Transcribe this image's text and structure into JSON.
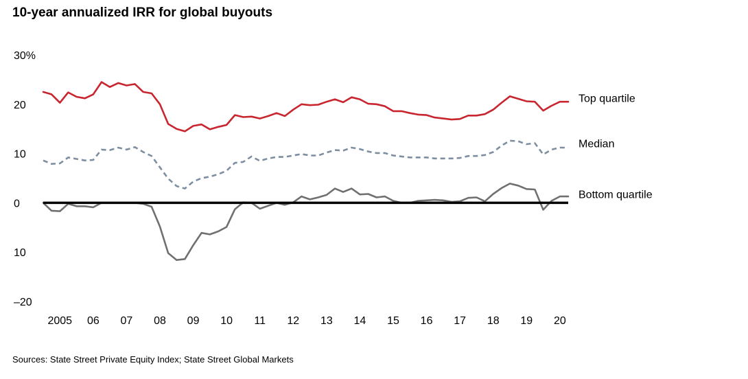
{
  "chart_data": {
    "type": "line",
    "title": "10-year annualized IRR for global buyouts",
    "source": "Sources: State Street Private Equity Index; State Street Global Markets",
    "xlabel": "",
    "ylabel": "",
    "xlim": [
      2005,
      2020.75
    ],
    "ylim": [
      -20,
      30
    ],
    "y_ticks": [
      {
        "value": 30,
        "label": "30%"
      },
      {
        "value": 20,
        "label": "20"
      },
      {
        "value": 10,
        "label": "10"
      },
      {
        "value": 0,
        "label": "0"
      },
      {
        "value": -10,
        "label": "10"
      },
      {
        "value": -20,
        "label": "–20"
      }
    ],
    "x_ticks": [
      {
        "value": 2005.5,
        "label": "2005"
      },
      {
        "value": 2006.5,
        "label": "06"
      },
      {
        "value": 2007.5,
        "label": "07"
      },
      {
        "value": 2008.5,
        "label": "08"
      },
      {
        "value": 2009.5,
        "label": "09"
      },
      {
        "value": 2010.5,
        "label": "10"
      },
      {
        "value": 2011.5,
        "label": "11"
      },
      {
        "value": 2012.5,
        "label": "12"
      },
      {
        "value": 2013.5,
        "label": "13"
      },
      {
        "value": 2014.5,
        "label": "14"
      },
      {
        "value": 2015.5,
        "label": "15"
      },
      {
        "value": 2016.5,
        "label": "16"
      },
      {
        "value": 2017.5,
        "label": "17"
      },
      {
        "value": 2018.5,
        "label": "18"
      },
      {
        "value": 2019.5,
        "label": "19"
      },
      {
        "value": 2020.5,
        "label": "20"
      }
    ],
    "x": [
      2005.0,
      2005.25,
      2005.5,
      2005.75,
      2006.0,
      2006.25,
      2006.5,
      2006.75,
      2007.0,
      2007.25,
      2007.5,
      2007.75,
      2008.0,
      2008.25,
      2008.5,
      2008.75,
      2009.0,
      2009.25,
      2009.5,
      2009.75,
      2010.0,
      2010.25,
      2010.5,
      2010.75,
      2011.0,
      2011.25,
      2011.5,
      2011.75,
      2012.0,
      2012.25,
      2012.5,
      2012.75,
      2013.0,
      2013.25,
      2013.5,
      2013.75,
      2014.0,
      2014.25,
      2014.5,
      2014.75,
      2015.0,
      2015.25,
      2015.5,
      2015.75,
      2016.0,
      2016.25,
      2016.5,
      2016.75,
      2017.0,
      2017.25,
      2017.5,
      2017.75,
      2018.0,
      2018.25,
      2018.5,
      2018.75,
      2019.0,
      2019.25,
      2019.5,
      2019.75,
      2020.0,
      2020.25,
      2020.5,
      2020.75
    ],
    "series": [
      {
        "name": "Top quartile",
        "color": "#c8252f",
        "dash": "solid",
        "values": [
          22.5,
          22.0,
          20.3,
          22.4,
          21.5,
          21.2,
          22.0,
          24.5,
          23.5,
          24.3,
          23.8,
          24.1,
          22.5,
          22.2,
          20.0,
          16.0,
          15.0,
          14.5,
          15.6,
          15.9,
          14.9,
          15.4,
          15.8,
          17.8,
          17.4,
          17.5,
          17.1,
          17.6,
          18.2,
          17.6,
          18.9,
          20.0,
          19.8,
          19.9,
          20.5,
          21.0,
          20.4,
          21.4,
          21.0,
          20.1,
          20.0,
          19.6,
          18.6,
          18.6,
          18.2,
          17.9,
          17.8,
          17.3,
          17.1,
          16.9,
          17.0,
          17.7,
          17.7,
          18.0,
          18.9,
          20.3,
          21.6,
          21.1,
          20.6,
          20.5,
          18.7,
          19.7,
          20.5,
          20.5
        ]
      },
      {
        "name": "Median",
        "color": "#7d8ea0",
        "dash": "dashed",
        "values": [
          8.6,
          7.9,
          8.0,
          9.2,
          8.9,
          8.6,
          8.7,
          10.8,
          10.7,
          11.2,
          10.8,
          11.3,
          10.3,
          9.5,
          7.2,
          4.9,
          3.4,
          2.9,
          4.3,
          5.0,
          5.3,
          5.8,
          6.5,
          8.1,
          8.3,
          9.4,
          8.5,
          9.0,
          9.3,
          9.3,
          9.6,
          9.9,
          9.6,
          9.6,
          10.2,
          10.7,
          10.6,
          11.2,
          10.9,
          10.4,
          10.1,
          10.1,
          9.6,
          9.4,
          9.2,
          9.2,
          9.2,
          9.0,
          9.0,
          9.0,
          9.1,
          9.5,
          9.5,
          9.7,
          10.3,
          11.6,
          12.6,
          12.5,
          11.9,
          12.1,
          9.8,
          10.8,
          11.2,
          11.2
        ]
      },
      {
        "name": "Bottom quartile",
        "color": "#707070",
        "dash": "solid",
        "values": [
          0.0,
          -1.6,
          -1.7,
          -0.2,
          -0.7,
          -0.7,
          -0.9,
          0.0,
          0.0,
          0.0,
          0.0,
          0.0,
          -0.2,
          -0.8,
          -4.8,
          -10.2,
          -11.6,
          -11.4,
          -8.6,
          -6.1,
          -6.4,
          -5.8,
          -4.9,
          -1.3,
          0.1,
          0.0,
          -1.2,
          -0.6,
          0.0,
          -0.4,
          0.1,
          1.3,
          0.7,
          1.1,
          1.6,
          2.9,
          2.2,
          2.9,
          1.7,
          1.8,
          1.1,
          1.3,
          0.4,
          0.0,
          0.0,
          0.4,
          0.5,
          0.6,
          0.5,
          0.2,
          0.3,
          1.0,
          1.1,
          0.3,
          1.8,
          3.0,
          3.9,
          3.5,
          2.8,
          2.7,
          -1.4,
          0.4,
          1.3,
          1.3
        ]
      }
    ],
    "zero_line": true,
    "grid": false
  }
}
